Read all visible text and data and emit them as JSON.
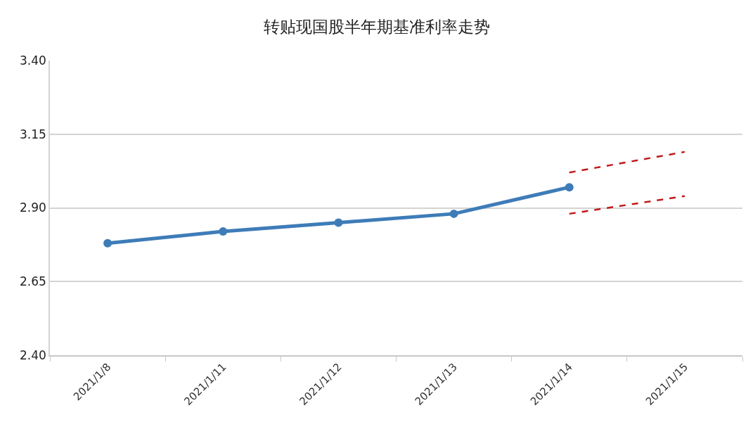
{
  "chart_data": {
    "type": "line",
    "title": "转贴现国股半年期基准利率走势",
    "categories": [
      "2021/1/8",
      "2021/1/11",
      "2021/1/12",
      "2021/1/13",
      "2021/1/14",
      "2021/1/15"
    ],
    "series": [
      {
        "color": "#3e7cb8",
        "values": [
          2.78,
          2.82,
          2.85,
          2.88,
          2.97,
          null
        ]
      },
      {
        "color": "#c0191c",
        "x": [
          "2021/1/14",
          "2021/1/15"
        ],
        "values": [
          3.02,
          3.09
        ],
        "line_style": "dashed",
        "marker": "none"
      },
      {
        "color": "#c0191c",
        "x": [
          "2021/1/14",
          "2021/1/15"
        ],
        "values": [
          2.88,
          2.94
        ],
        "line_style": "dashed",
        "marker": "none"
      }
    ],
    "ylim": [
      2.4,
      3.4
    ],
    "yticks": [
      {
        "value": 2.4,
        "label": "2.40"
      },
      {
        "value": 2.65,
        "label": "2.65"
      },
      {
        "value": 2.9,
        "label": "2.90"
      },
      {
        "value": 3.15,
        "label": "3.15"
      },
      {
        "value": 3.4,
        "label": "3.40"
      }
    ],
    "grid": "y",
    "marker": "circle",
    "line_style": "solid"
  }
}
